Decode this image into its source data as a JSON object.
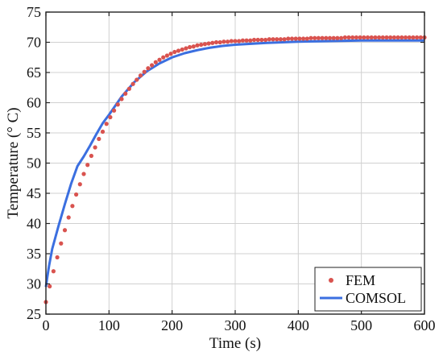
{
  "chart_data": {
    "type": "line",
    "title": "",
    "xlabel": "Time (s)",
    "ylabel": "Temperature (° C)",
    "xlim": [
      0,
      600
    ],
    "ylim": [
      25,
      75
    ],
    "x_ticks": [
      0,
      100,
      200,
      300,
      400,
      500,
      600
    ],
    "y_ticks": [
      25,
      30,
      35,
      40,
      45,
      50,
      55,
      60,
      65,
      70,
      75
    ],
    "grid": true,
    "legend_position": "bottom-right",
    "series": [
      {
        "name": "FEM",
        "style": "markers",
        "color": "#d9534f",
        "x": [
          0,
          6,
          12,
          18,
          24,
          30,
          36,
          42,
          48,
          54,
          60,
          66,
          72,
          78,
          84,
          90,
          96,
          102,
          108,
          114,
          120,
          126,
          132,
          138,
          144,
          150,
          156,
          162,
          168,
          174,
          180,
          186,
          192,
          198,
          204,
          210,
          216,
          222,
          228,
          234,
          240,
          246,
          252,
          258,
          264,
          270,
          276,
          282,
          288,
          294,
          300,
          306,
          312,
          318,
          324,
          330,
          336,
          342,
          348,
          354,
          360,
          366,
          372,
          378,
          384,
          390,
          396,
          402,
          408,
          414,
          420,
          426,
          432,
          438,
          444,
          450,
          456,
          462,
          468,
          474,
          480,
          486,
          492,
          498,
          504,
          510,
          516,
          522,
          528,
          534,
          540,
          546,
          552,
          558,
          564,
          570,
          576,
          582,
          588,
          594,
          600
        ],
        "y": [
          27.0,
          29.6,
          32.1,
          34.4,
          36.7,
          38.9,
          41.0,
          42.9,
          44.8,
          46.5,
          48.2,
          49.7,
          51.2,
          52.6,
          54.0,
          55.2,
          56.5,
          57.6,
          58.7,
          59.7,
          60.6,
          61.5,
          62.3,
          63.1,
          63.8,
          64.5,
          65.1,
          65.7,
          66.2,
          66.7,
          67.1,
          67.5,
          67.8,
          68.1,
          68.4,
          68.6,
          68.8,
          69.0,
          69.2,
          69.3,
          69.5,
          69.6,
          69.7,
          69.8,
          69.9,
          70.0,
          70.0,
          70.1,
          70.1,
          70.2,
          70.2,
          70.2,
          70.3,
          70.3,
          70.3,
          70.4,
          70.4,
          70.4,
          70.4,
          70.5,
          70.5,
          70.5,
          70.5,
          70.5,
          70.6,
          70.6,
          70.6,
          70.6,
          70.6,
          70.6,
          70.7,
          70.7,
          70.7,
          70.7,
          70.7,
          70.7,
          70.7,
          70.7,
          70.7,
          70.8,
          70.8,
          70.8,
          70.8,
          70.8,
          70.8,
          70.8,
          70.8,
          70.8,
          70.8,
          70.8,
          70.8,
          70.8,
          70.8,
          70.8,
          70.8,
          70.8,
          70.8,
          70.8,
          70.8,
          70.8,
          70.8
        ]
      },
      {
        "name": "COMSOL",
        "style": "line",
        "color": "#3b6fe0",
        "x": [
          0,
          2,
          5,
          10,
          15,
          20,
          30,
          40,
          50,
          55,
          60,
          70,
          80,
          90,
          100,
          120,
          140,
          160,
          180,
          200,
          220,
          240,
          260,
          280,
          300,
          350,
          400,
          450,
          500,
          550,
          600
        ],
        "y": [
          29.5,
          31.0,
          33.0,
          35.8,
          37.7,
          39.6,
          43.2,
          46.6,
          49.5,
          50.3,
          51.1,
          52.9,
          54.8,
          56.6,
          58.0,
          61.0,
          63.4,
          65.2,
          66.5,
          67.5,
          68.2,
          68.7,
          69.1,
          69.4,
          69.6,
          69.9,
          70.1,
          70.2,
          70.3,
          70.3,
          70.3
        ]
      }
    ]
  }
}
